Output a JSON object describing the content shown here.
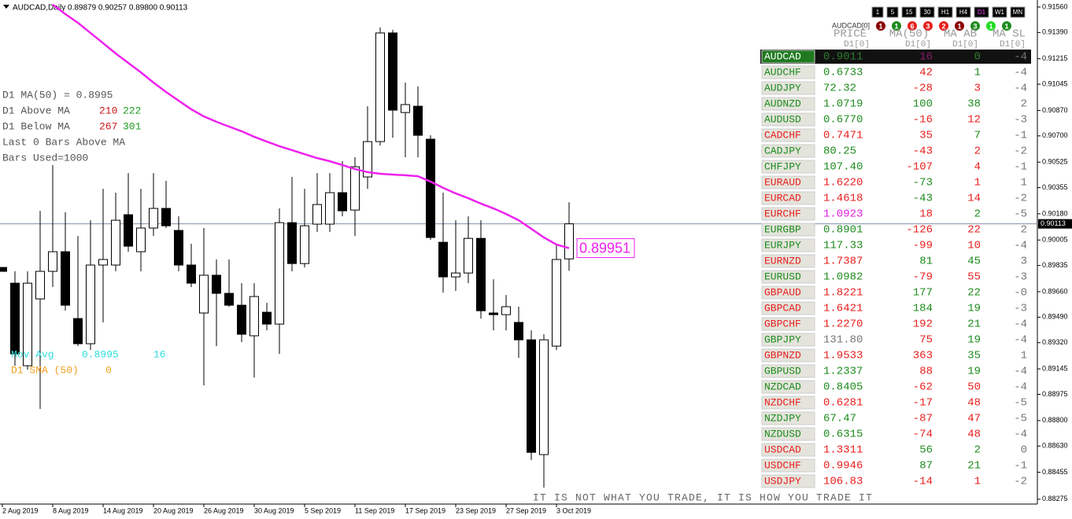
{
  "header": "AUDCAD,Daily  0.89879 0.90257 0.89800 0.90113",
  "chart_data": {
    "type": "candlestick",
    "categories": [
      "2 Aug 2019",
      null,
      null,
      null,
      "8 Aug 2019",
      null,
      null,
      null,
      "14 Aug 2019",
      null,
      null,
      null,
      "20 Aug 2019",
      null,
      null,
      null,
      "26 Aug 2019",
      null,
      null,
      null,
      "30 Aug 2019",
      null,
      null,
      null,
      "5 Sep 2019",
      null,
      null,
      null,
      "11 Sep 2019",
      null,
      null,
      null,
      "17 Sep 2019",
      null,
      null,
      null,
      "23 Sep 2019",
      null,
      null,
      null,
      "27 Sep 2019",
      null,
      null,
      null,
      "3 Oct 2019",
      null
    ],
    "open": [
      0.89822,
      0.89717,
      0.89166,
      0.89612,
      0.89796,
      0.89927,
      0.89481,
      0.89313,
      0.89838,
      0.89838,
      0.90174,
      0.89927,
      0.90085,
      0.90216,
      0.90069,
      0.89838,
      0.89518,
      0.8977,
      0.89649,
      0.8957,
      0.89366,
      0.89523,
      0.89444,
      0.90121,
      0.89848,
      0.90111,
      0.90111,
      0.90321,
      0.90205,
      0.90426,
      0.90662,
      0.91387,
      0.90856,
      0.90898,
      0.90678,
      0.8999,
      0.89759,
      0.89785,
      0.90016,
      0.89518,
      0.89507,
      0.89455,
      0.89339,
      0.88573,
      0.89297,
      0.89879
    ],
    "high": [
      0.89822,
      0.89796,
      0.89796,
      0.902,
      0.90505,
      0.9019,
      0.90032,
      0.90137,
      0.90347,
      0.90321,
      0.90452,
      0.90347,
      0.90452,
      0.904,
      0.90163,
      0.8998,
      0.90085,
      0.89875,
      0.89875,
      0.89717,
      0.89717,
      0.89586,
      0.90216,
      0.90426,
      0.90347,
      0.90452,
      0.90452,
      0.90531,
      0.90557,
      0.90898,
      0.91424,
      0.91408,
      0.91056,
      0.9103,
      0.90704,
      0.90321,
      0.90137,
      0.90163,
      0.90137,
      0.89743,
      0.89638,
      0.8956,
      0.89402,
      0.89376,
      0.8998,
      0.90257
    ],
    "low": [
      0.89796,
      0.89166,
      0.8914,
      0.88877,
      0.89691,
      0.89533,
      0.89297,
      0.89271,
      0.89455,
      0.89796,
      0.89927,
      0.89796,
      0.90032,
      0.90085,
      0.89796,
      0.89691,
      0.89035,
      0.89297,
      0.8956,
      0.89323,
      0.89087,
      0.89402,
      0.89245,
      0.89796,
      0.89822,
      0.90058,
      0.90058,
      0.90163,
      0.90032,
      0.90347,
      0.90636,
      0.90688,
      0.90557,
      0.90557,
      0.90006,
      0.89654,
      0.89665,
      0.89717,
      0.89481,
      0.89402,
      0.89402,
      0.89218,
      0.88536,
      0.88352,
      0.89271,
      0.898
    ],
    "close": [
      0.89796,
      0.89245,
      0.89717,
      0.89796,
      0.89927,
      0.8957,
      0.89313,
      0.89838,
      0.89875,
      0.90137,
      0.89964,
      0.90085,
      0.90216,
      0.901,
      0.89838,
      0.89717,
      0.8977,
      0.89649,
      0.8957,
      0.89376,
      0.89628,
      0.89444,
      0.90121,
      0.89848,
      0.901,
      0.90242,
      0.90321,
      0.902,
      0.90494,
      0.90662,
      0.91387,
      0.90872,
      0.90909,
      0.90704,
      0.90022,
      0.89759,
      0.89785,
      0.90016,
      0.89533,
      0.89507,
      0.8956,
      0.89339,
      0.88588,
      0.89339,
      0.89875,
      0.90113
    ],
    "up_color": "#ffffff",
    "down_color": "#000000",
    "moving_average": {
      "color": "#ee22ee",
      "values": [
        null,
        null,
        null,
        null,
        0.91576,
        0.91513,
        0.91455,
        0.91387,
        0.91319,
        0.9125,
        0.91187,
        0.91124,
        0.91056,
        0.90993,
        0.90935,
        0.90878,
        0.9083,
        0.90794,
        0.90762,
        0.90731,
        0.90694,
        0.90662,
        0.90631,
        0.90605,
        0.90578,
        0.90552,
        0.90531,
        0.90505,
        0.90479,
        0.90458,
        0.90447,
        0.90442,
        0.90437,
        0.90431,
        0.90395,
        0.90353,
        0.90316,
        0.90284,
        0.90248,
        0.90216,
        0.90179,
        0.90137,
        0.9008,
        0.90022,
        0.89975,
        0.89951
      ]
    },
    "ma_value": 0.89951,
    "bid": 0.90113,
    "ylim": [
      0.88248,
      0.91607
    ],
    "yticks": [
      {
        "value": 0.9156,
        "label": "0.91560"
      },
      {
        "value": 0.9139,
        "label": "0.91390"
      },
      0.91215,
      {
        "value": 0.91045,
        "label": "0.91045"
      },
      {
        "value": 0.9087,
        "label": "0.90870"
      },
      {
        "value": 0.907,
        "label": "0.90700"
      },
      0.90525,
      0.90355,
      {
        "value": 0.9018,
        "label": "0.90180"
      },
      0.90005,
      0.89835,
      {
        "value": 0.8966,
        "label": "0.89660"
      },
      {
        "value": 0.8949,
        "label": "0.89490"
      },
      {
        "value": 0.8932,
        "label": "0.89320"
      },
      0.89145,
      0.88975,
      {
        "value": 0.888,
        "label": "0.88800"
      },
      {
        "value": 0.8863,
        "label": "0.88630"
      },
      0.88455,
      0.88275
    ]
  },
  "indicator": {
    "ma_line": "D1 MA(50) = 0.8995",
    "above_label": "D1 Above MA",
    "above_1": "210",
    "above_2": "222",
    "below_label": "D1 Below MA",
    "below_1": "267",
    "below_2": "301",
    "last_bars": "Last 0 Bars Above MA",
    "bars_used": "Bars Used=1000",
    "mov_avg_label": "Mov Avg",
    "mov_avg_value": "0.8995",
    "mov_avg_count": "16",
    "sma_label": "D1 SMA (50)",
    "sma_value": "0"
  },
  "note": "IT IS NOT WHAT YOU TRADE, IT IS HOW YOU TRADE IT",
  "panel": {
    "timeframes": [
      {
        "label": "1",
        "color": "#ffffff"
      },
      {
        "label": "5",
        "color": "#ffffff"
      },
      {
        "label": "15",
        "color": "#ffffff"
      },
      {
        "label": "30",
        "color": "#ffffff"
      },
      {
        "label": "H1",
        "color": "#ffffff"
      },
      {
        "label": "H4",
        "color": "#ffffff"
      },
      {
        "label": "D1",
        "color": "#ff44ff"
      },
      {
        "label": "W1",
        "color": "#ffffff"
      },
      {
        "label": "MN",
        "color": "#ffffff"
      }
    ],
    "signal_label": "AUDCAD[0]",
    "signals": [
      {
        "label": "1",
        "color": "#8b0000"
      },
      {
        "label": "1",
        "color": "#1e8c1e"
      },
      {
        "label": "6",
        "color": "#e8201e"
      },
      {
        "label": "3",
        "color": "#e8201e"
      },
      {
        "label": "2",
        "color": "#e8201e"
      },
      {
        "label": "1",
        "color": "#8b0000"
      },
      {
        "label": "3",
        "color": "#1e8c1e"
      },
      {
        "label": "1",
        "color": "#22dd22"
      },
      {
        "label": "1",
        "color": "#1e8c1e"
      }
    ],
    "columns": [
      "PRICE",
      "MA(50)",
      "MA AB",
      "MA SL"
    ],
    "subheaders": [
      "D1[0]",
      "D1[0]",
      "D1[0]",
      "D1[0]"
    ],
    "rows": [
      {
        "symbol": "AUDCAD",
        "price": "0.9011",
        "ma": "16",
        "ab": "0",
        "sl": "-4",
        "colors": [
          "#ffffff",
          "#2e7d2e",
          "#8a1a6a",
          "#2e7d2e"
        ],
        "highlight": true
      },
      {
        "symbol": "AUDCHF",
        "price": "0.6733",
        "ma": "42",
        "ab": "1",
        "sl": "-4",
        "colors": [
          "#1e8c1e",
          "#1e8c1e",
          "#e8201e",
          "#1e8c1e"
        ]
      },
      {
        "symbol": "AUDJPY",
        "price": "72.32",
        "ma": "-28",
        "ab": "3",
        "sl": "-4",
        "colors": [
          "#1e8c1e",
          "#1e8c1e",
          "#e8201e",
          "#e8201e"
        ]
      },
      {
        "symbol": "AUDNZD",
        "price": "1.0719",
        "ma": "100",
        "ab": "38",
        "sl": "2",
        "colors": [
          "#1e8c1e",
          "#1e8c1e",
          "#1e8c1e",
          "#1e8c1e"
        ]
      },
      {
        "symbol": "AUDUSD",
        "price": "0.6770",
        "ma": "-16",
        "ab": "12",
        "sl": "-3",
        "colors": [
          "#1e8c1e",
          "#1e8c1e",
          "#e8201e",
          "#e8201e"
        ]
      },
      {
        "symbol": "CADCHF",
        "price": "0.7471",
        "ma": "35",
        "ab": "7",
        "sl": "-1",
        "colors": [
          "#e8201e",
          "#e8201e",
          "#e8201e",
          "#1e8c1e"
        ]
      },
      {
        "symbol": "CADJPY",
        "price": "80.25",
        "ma": "-43",
        "ab": "2",
        "sl": "-2",
        "colors": [
          "#1e8c1e",
          "#1e8c1e",
          "#e8201e",
          "#e8201e"
        ]
      },
      {
        "symbol": "CHFJPY",
        "price": "107.40",
        "ma": "-107",
        "ab": "4",
        "sl": "-1",
        "colors": [
          "#1e8c1e",
          "#1e8c1e",
          "#e8201e",
          "#e8201e"
        ]
      },
      {
        "symbol": "EURAUD",
        "price": "1.6220",
        "ma": "-73",
        "ab": "1",
        "sl": "1",
        "colors": [
          "#e8201e",
          "#e8201e",
          "#1e8c1e",
          "#e8201e"
        ]
      },
      {
        "symbol": "EURCAD",
        "price": "1.4618",
        "ma": "-43",
        "ab": "14",
        "sl": "-2",
        "colors": [
          "#e8201e",
          "#e8201e",
          "#1e8c1e",
          "#e8201e"
        ]
      },
      {
        "symbol": "EURCHF",
        "price": "1.0923",
        "ma": "18",
        "ab": "2",
        "sl": "-5",
        "colors": [
          "#e8201e",
          "#e020e0",
          "#e8201e",
          "#1e8c1e"
        ]
      },
      {
        "symbol": "EURGBP",
        "price": "0.8901",
        "ma": "-126",
        "ab": "22",
        "sl": "2",
        "colors": [
          "#1e8c1e",
          "#1e8c1e",
          "#e8201e",
          "#e8201e"
        ]
      },
      {
        "symbol": "EURJPY",
        "price": "117.33",
        "ma": "-99",
        "ab": "10",
        "sl": "-4",
        "colors": [
          "#1e8c1e",
          "#1e8c1e",
          "#e8201e",
          "#e8201e"
        ]
      },
      {
        "symbol": "EURNZD",
        "price": "1.7387",
        "ma": "81",
        "ab": "45",
        "sl": "3",
        "colors": [
          "#e8201e",
          "#e8201e",
          "#1e8c1e",
          "#1e8c1e"
        ]
      },
      {
        "symbol": "EURUSD",
        "price": "1.0982",
        "ma": "-79",
        "ab": "55",
        "sl": "-3",
        "colors": [
          "#1e8c1e",
          "#1e8c1e",
          "#e8201e",
          "#e8201e"
        ]
      },
      {
        "symbol": "GBPAUD",
        "price": "1.8221",
        "ma": "177",
        "ab": "22",
        "sl": "-0",
        "colors": [
          "#e8201e",
          "#e8201e",
          "#1e8c1e",
          "#1e8c1e"
        ]
      },
      {
        "symbol": "GBPCAD",
        "price": "1.6421",
        "ma": "184",
        "ab": "19",
        "sl": "-3",
        "colors": [
          "#e8201e",
          "#e8201e",
          "#1e8c1e",
          "#1e8c1e"
        ]
      },
      {
        "symbol": "GBPCHF",
        "price": "1.2270",
        "ma": "192",
        "ab": "21",
        "sl": "-4",
        "colors": [
          "#e8201e",
          "#e8201e",
          "#e8201e",
          "#1e8c1e"
        ]
      },
      {
        "symbol": "GBPJPY",
        "price": "131.80",
        "ma": "75",
        "ab": "19",
        "sl": "-4",
        "colors": [
          "#1e8c1e",
          "#777777",
          "#e8201e",
          "#1e8c1e"
        ]
      },
      {
        "symbol": "GBPNZD",
        "price": "1.9533",
        "ma": "363",
        "ab": "35",
        "sl": "1",
        "colors": [
          "#e8201e",
          "#e8201e",
          "#e8201e",
          "#1e8c1e"
        ]
      },
      {
        "symbol": "GBPUSD",
        "price": "1.2337",
        "ma": "88",
        "ab": "19",
        "sl": "-4",
        "colors": [
          "#1e8c1e",
          "#1e8c1e",
          "#e8201e",
          "#1e8c1e"
        ]
      },
      {
        "symbol": "NZDCAD",
        "price": "0.8405",
        "ma": "-62",
        "ab": "50",
        "sl": "-4",
        "colors": [
          "#1e8c1e",
          "#1e8c1e",
          "#e8201e",
          "#e8201e"
        ]
      },
      {
        "symbol": "NZDCHF",
        "price": "0.6281",
        "ma": "-17",
        "ab": "48",
        "sl": "-5",
        "colors": [
          "#e8201e",
          "#e8201e",
          "#e8201e",
          "#e8201e"
        ]
      },
      {
        "symbol": "NZDJPY",
        "price": "67.47",
        "ma": "-87",
        "ab": "47",
        "sl": "-5",
        "colors": [
          "#1e8c1e",
          "#1e8c1e",
          "#e8201e",
          "#e8201e"
        ]
      },
      {
        "symbol": "NZDUSD",
        "price": "0.6315",
        "ma": "-74",
        "ab": "48",
        "sl": "-4",
        "colors": [
          "#1e8c1e",
          "#1e8c1e",
          "#e8201e",
          "#e8201e"
        ]
      },
      {
        "symbol": "USDCAD",
        "price": "1.3311",
        "ma": "56",
        "ab": "2",
        "sl": "0",
        "colors": [
          "#e8201e",
          "#e8201e",
          "#1e8c1e",
          "#1e8c1e"
        ]
      },
      {
        "symbol": "USDCHF",
        "price": "0.9946",
        "ma": "87",
        "ab": "21",
        "sl": "-1",
        "colors": [
          "#e8201e",
          "#e8201e",
          "#1e8c1e",
          "#1e8c1e"
        ]
      },
      {
        "symbol": "USDJPY",
        "price": "106.83",
        "ma": "-14",
        "ab": "1",
        "sl": "-2",
        "colors": [
          "#e8201e",
          "#e8201e",
          "#e8201e",
          "#e8201e"
        ]
      }
    ]
  }
}
